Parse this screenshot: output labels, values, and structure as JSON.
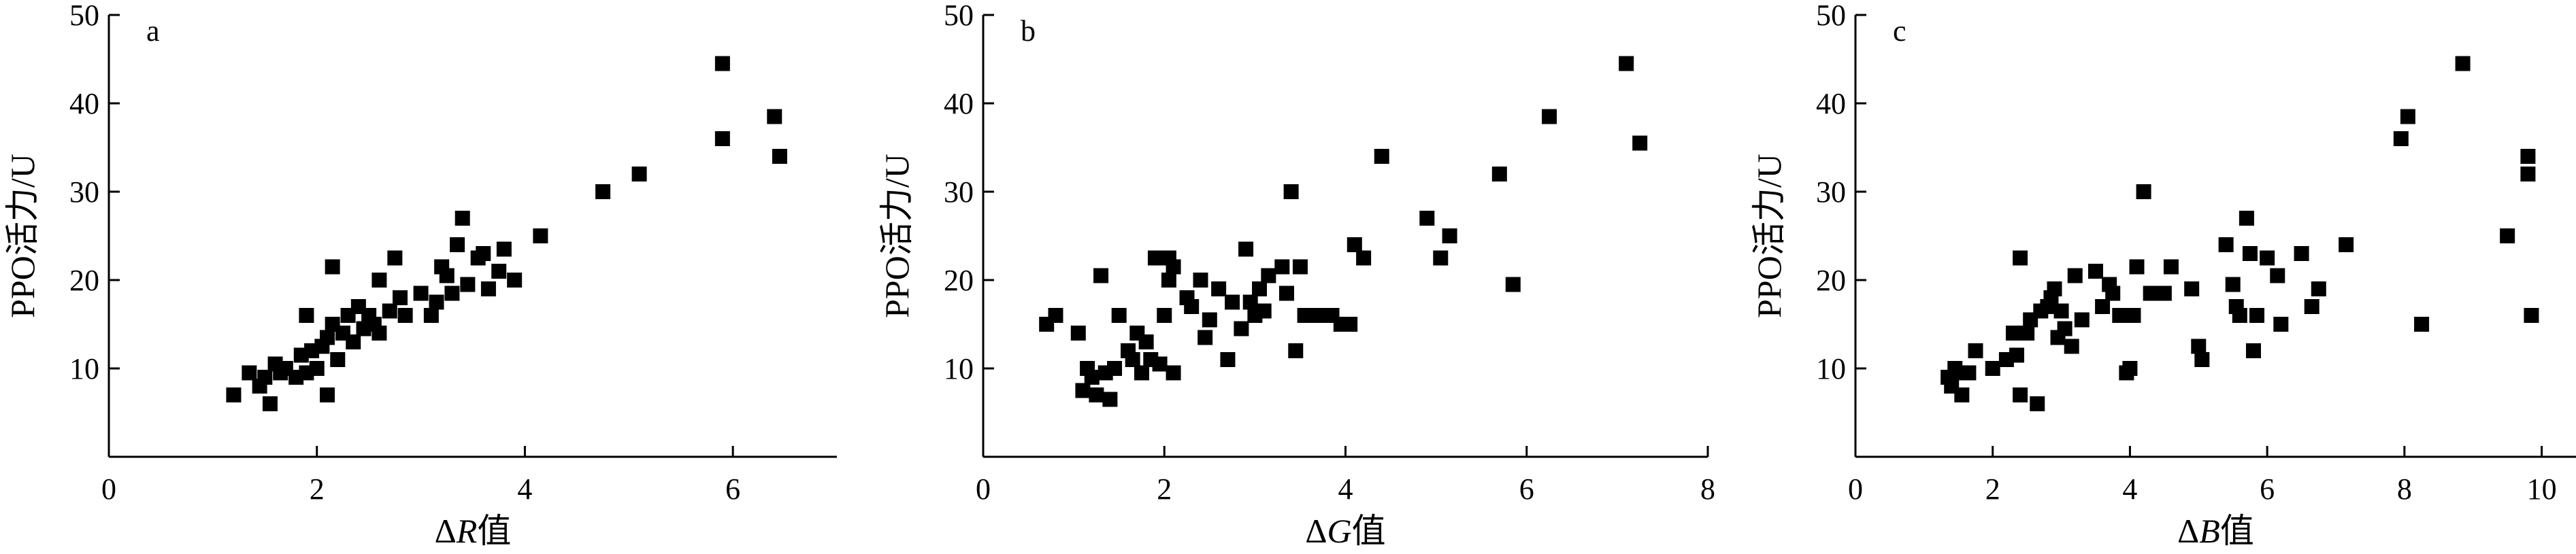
{
  "chart_data": [
    {
      "type": "scatter",
      "panel_label": "a",
      "xlabel": {
        "delta": "Δ",
        "var": "R",
        "suffix": "值"
      },
      "ylabel": "PPO活力/U",
      "xlim": [
        0,
        7
      ],
      "ylim": [
        0,
        50
      ],
      "xticks": [
        0,
        2,
        4,
        6
      ],
      "yticks": [
        10,
        20,
        30,
        40,
        50
      ],
      "grid": false,
      "series": [
        {
          "points": [
            [
              1.2,
              7.0
            ],
            [
              1.35,
              9.5
            ],
            [
              1.45,
              8.0
            ],
            [
              1.5,
              9.0
            ],
            [
              1.55,
              6.0
            ],
            [
              1.6,
              10.5
            ],
            [
              1.65,
              9.5
            ],
            [
              1.7,
              10.0
            ],
            [
              1.8,
              9.0
            ],
            [
              1.85,
              11.5
            ],
            [
              1.9,
              9.5
            ],
            [
              1.9,
              16.0
            ],
            [
              1.95,
              12.0
            ],
            [
              2.0,
              10.0
            ],
            [
              2.05,
              12.5
            ],
            [
              2.1,
              7.0
            ],
            [
              2.1,
              13.5
            ],
            [
              2.15,
              15.0
            ],
            [
              2.15,
              21.5
            ],
            [
              2.2,
              11.0
            ],
            [
              2.25,
              14.0
            ],
            [
              2.3,
              16.0
            ],
            [
              2.35,
              13.0
            ],
            [
              2.4,
              17.0
            ],
            [
              2.45,
              14.5
            ],
            [
              2.5,
              16.0
            ],
            [
              2.55,
              15.0
            ],
            [
              2.6,
              20.0
            ],
            [
              2.6,
              14.0
            ],
            [
              2.7,
              16.5
            ],
            [
              2.75,
              22.5
            ],
            [
              2.8,
              18.0
            ],
            [
              2.85,
              16.0
            ],
            [
              3.0,
              18.5
            ],
            [
              3.1,
              16.0
            ],
            [
              3.15,
              17.5
            ],
            [
              3.2,
              21.5
            ],
            [
              3.25,
              20.5
            ],
            [
              3.3,
              18.5
            ],
            [
              3.35,
              24.0
            ],
            [
              3.4,
              27.0
            ],
            [
              3.45,
              19.5
            ],
            [
              3.55,
              22.5
            ],
            [
              3.6,
              23.0
            ],
            [
              3.65,
              19.0
            ],
            [
              3.75,
              21.0
            ],
            [
              3.8,
              23.5
            ],
            [
              3.9,
              20.0
            ],
            [
              4.15,
              25.0
            ],
            [
              4.75,
              30.0
            ],
            [
              5.1,
              32.0
            ],
            [
              5.9,
              36.0
            ],
            [
              5.9,
              44.5
            ],
            [
              6.4,
              38.5
            ],
            [
              6.45,
              34.0
            ]
          ]
        }
      ]
    },
    {
      "type": "scatter",
      "panel_label": "b",
      "xlabel": {
        "delta": "Δ",
        "var": "G",
        "suffix": "值"
      },
      "ylabel": "PPO活力/U",
      "xlim": [
        0,
        8
      ],
      "ylim": [
        0,
        50
      ],
      "xticks": [
        0,
        2,
        4,
        6,
        8
      ],
      "yticks": [
        10,
        20,
        30,
        40,
        50
      ],
      "grid": false,
      "series": [
        {
          "points": [
            [
              0.7,
              15.0
            ],
            [
              0.8,
              16.0
            ],
            [
              1.05,
              14.0
            ],
            [
              1.1,
              7.5
            ],
            [
              1.15,
              10.0
            ],
            [
              1.2,
              9.0
            ],
            [
              1.25,
              7.0
            ],
            [
              1.3,
              20.5
            ],
            [
              1.35,
              9.5
            ],
            [
              1.4,
              6.5
            ],
            [
              1.45,
              10.0
            ],
            [
              1.5,
              16.0
            ],
            [
              1.6,
              12.0
            ],
            [
              1.65,
              11.0
            ],
            [
              1.7,
              14.0
            ],
            [
              1.75,
              9.5
            ],
            [
              1.8,
              13.0
            ],
            [
              1.85,
              11.0
            ],
            [
              1.9,
              22.5
            ],
            [
              1.95,
              10.5
            ],
            [
              2.0,
              16.0
            ],
            [
              2.05,
              22.5
            ],
            [
              2.05,
              20.0
            ],
            [
              2.1,
              9.5
            ],
            [
              2.1,
              21.5
            ],
            [
              2.25,
              18.0
            ],
            [
              2.3,
              17.0
            ],
            [
              2.4,
              20.0
            ],
            [
              2.45,
              13.5
            ],
            [
              2.5,
              15.5
            ],
            [
              2.6,
              19.0
            ],
            [
              2.7,
              11.0
            ],
            [
              2.75,
              17.5
            ],
            [
              2.85,
              14.5
            ],
            [
              2.9,
              23.5
            ],
            [
              2.95,
              17.5
            ],
            [
              3.0,
              16.0
            ],
            [
              3.05,
              19.0
            ],
            [
              3.1,
              16.5
            ],
            [
              3.15,
              20.5
            ],
            [
              3.3,
              21.5
            ],
            [
              3.35,
              18.5
            ],
            [
              3.4,
              30.0
            ],
            [
              3.45,
              12.0
            ],
            [
              3.5,
              21.5
            ],
            [
              3.55,
              16.0
            ],
            [
              3.7,
              16.0
            ],
            [
              3.8,
              16.0
            ],
            [
              3.85,
              16.0
            ],
            [
              3.95,
              15.0
            ],
            [
              4.05,
              15.0
            ],
            [
              4.1,
              24.0
            ],
            [
              4.2,
              22.5
            ],
            [
              4.4,
              34.0
            ],
            [
              4.9,
              27.0
            ],
            [
              5.05,
              22.5
            ],
            [
              5.15,
              25.0
            ],
            [
              5.7,
              32.0
            ],
            [
              5.85,
              19.5
            ],
            [
              6.25,
              38.5
            ],
            [
              7.1,
              44.5
            ],
            [
              7.25,
              35.5
            ]
          ]
        }
      ]
    },
    {
      "type": "scatter",
      "panel_label": "c",
      "xlabel": {
        "delta": "Δ",
        "var": "B",
        "suffix": "值"
      },
      "ylabel": "PPO活力/U",
      "xlim": [
        0,
        10.5
      ],
      "ylim": [
        0,
        50
      ],
      "xticks": [
        0,
        2,
        4,
        6,
        8,
        10
      ],
      "yticks": [
        10,
        20,
        30,
        40,
        50
      ],
      "grid": false,
      "series": [
        {
          "points": [
            [
              1.35,
              9.0
            ],
            [
              1.4,
              8.0
            ],
            [
              1.45,
              10.0
            ],
            [
              1.5,
              9.5
            ],
            [
              1.55,
              7.0
            ],
            [
              1.65,
              9.5
            ],
            [
              1.75,
              12.0
            ],
            [
              2.0,
              10.0
            ],
            [
              2.2,
              11.0
            ],
            [
              2.3,
              14.0
            ],
            [
              2.35,
              11.5
            ],
            [
              2.4,
              22.5
            ],
            [
              2.4,
              7.0
            ],
            [
              2.5,
              14.0
            ],
            [
              2.55,
              15.5
            ],
            [
              2.65,
              6.0
            ],
            [
              2.7,
              16.5
            ],
            [
              2.8,
              17.0
            ],
            [
              2.85,
              18.0
            ],
            [
              2.9,
              19.0
            ],
            [
              2.95,
              13.5
            ],
            [
              3.0,
              16.5
            ],
            [
              3.05,
              14.5
            ],
            [
              3.15,
              12.5
            ],
            [
              3.2,
              20.5
            ],
            [
              3.3,
              15.5
            ],
            [
              3.5,
              21.0
            ],
            [
              3.6,
              17.0
            ],
            [
              3.7,
              19.5
            ],
            [
              3.75,
              18.5
            ],
            [
              3.85,
              16.0
            ],
            [
              3.95,
              9.5
            ],
            [
              4.0,
              10.0
            ],
            [
              4.05,
              16.0
            ],
            [
              4.1,
              21.5
            ],
            [
              4.2,
              30.0
            ],
            [
              4.3,
              18.5
            ],
            [
              4.5,
              18.5
            ],
            [
              4.6,
              21.5
            ],
            [
              4.9,
              19.0
            ],
            [
              5.0,
              12.5
            ],
            [
              5.05,
              11.0
            ],
            [
              5.4,
              24.0
            ],
            [
              5.5,
              19.5
            ],
            [
              5.55,
              17.0
            ],
            [
              5.6,
              16.0
            ],
            [
              5.7,
              27.0
            ],
            [
              5.75,
              23.0
            ],
            [
              5.8,
              12.0
            ],
            [
              5.85,
              16.0
            ],
            [
              6.0,
              22.5
            ],
            [
              6.15,
              20.5
            ],
            [
              6.2,
              15.0
            ],
            [
              6.5,
              23.0
            ],
            [
              6.65,
              17.0
            ],
            [
              6.75,
              19.0
            ],
            [
              7.15,
              24.0
            ],
            [
              7.95,
              36.0
            ],
            [
              8.05,
              38.5
            ],
            [
              8.25,
              15.0
            ],
            [
              8.85,
              44.5
            ],
            [
              9.5,
              25.0
            ],
            [
              9.8,
              34.0
            ],
            [
              9.8,
              32.0
            ],
            [
              9.85,
              16.0
            ]
          ]
        }
      ]
    }
  ]
}
